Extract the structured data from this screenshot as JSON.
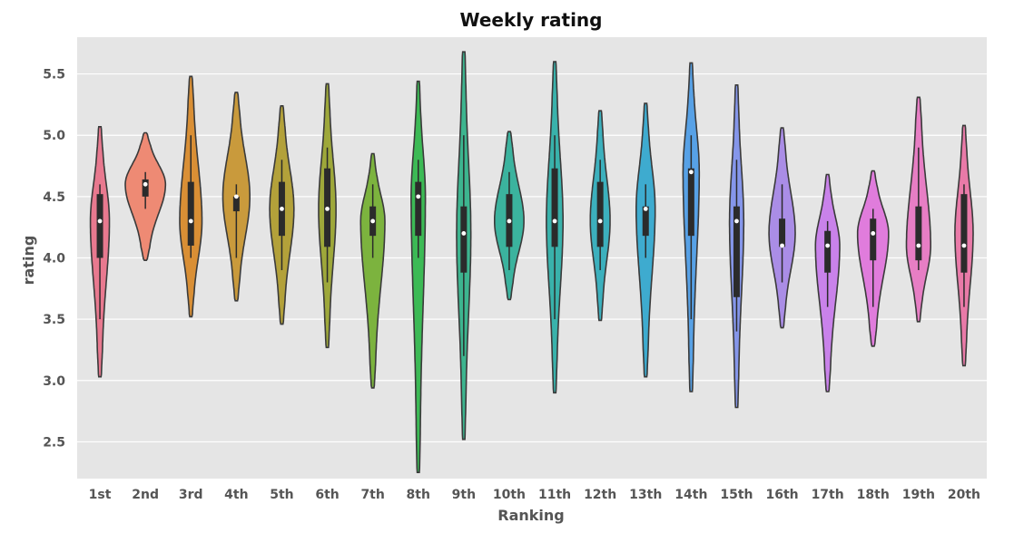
{
  "chart_data": {
    "type": "violin",
    "title": "Weekly rating",
    "xlabel": "Ranking",
    "ylabel": "rating",
    "ylim": [
      2.2,
      5.8
    ],
    "yticks": [
      "2.5",
      "3.0",
      "3.5",
      "4.0",
      "4.5",
      "5.0",
      "5.5"
    ],
    "grid": true,
    "categories": [
      "1st",
      "2nd",
      "3rd",
      "4th",
      "5th",
      "6th",
      "7th",
      "8th",
      "9th",
      "10th",
      "11th",
      "12th",
      "13th",
      "14th",
      "15th",
      "16th",
      "17th",
      "18th",
      "19th",
      "20th"
    ],
    "colors": [
      "#e8798f",
      "#ee8a74",
      "#d98f35",
      "#c99a3c",
      "#b3a13a",
      "#9ea83a",
      "#7cb33e",
      "#3cba55",
      "#3db58f",
      "#3bb39e",
      "#39b2ab",
      "#3cb0bd",
      "#3eabcf",
      "#57a1e6",
      "#8596ea",
      "#aa8de6",
      "#c982ea",
      "#e07cdc",
      "#e77ec4",
      "#e97aa8"
    ],
    "series": [
      {
        "min": 3.03,
        "max": 5.07,
        "q1": 4.0,
        "median": 4.3,
        "q3": 4.52,
        "wlo": 3.5,
        "whi": 4.6,
        "mode": 4.3,
        "maxw": 0.42
      },
      {
        "min": 3.98,
        "max": 5.02,
        "q1": 4.5,
        "median": 4.6,
        "q3": 4.64,
        "wlo": 4.4,
        "whi": 4.7,
        "mode": 4.6,
        "maxw": 0.95
      },
      {
        "min": 3.52,
        "max": 5.48,
        "q1": 4.1,
        "median": 4.3,
        "q3": 4.62,
        "wlo": 4.0,
        "whi": 5.0,
        "mode": 4.3,
        "maxw": 0.5
      },
      {
        "min": 3.65,
        "max": 5.35,
        "q1": 4.38,
        "median": 4.5,
        "q3": 4.5,
        "wlo": 4.0,
        "whi": 4.6,
        "mode": 4.5,
        "maxw": 0.62
      },
      {
        "min": 3.46,
        "max": 5.24,
        "q1": 4.18,
        "median": 4.4,
        "q3": 4.62,
        "wlo": 3.9,
        "whi": 4.8,
        "mode": 4.4,
        "maxw": 0.55
      },
      {
        "min": 3.27,
        "max": 5.42,
        "q1": 4.09,
        "median": 4.4,
        "q3": 4.73,
        "wlo": 3.8,
        "whi": 4.9,
        "mode": 4.4,
        "maxw": 0.38
      },
      {
        "min": 2.94,
        "max": 4.85,
        "q1": 4.18,
        "median": 4.3,
        "q3": 4.42,
        "wlo": 4.0,
        "whi": 4.6,
        "mode": 4.3,
        "maxw": 0.55
      },
      {
        "min": 2.25,
        "max": 5.44,
        "q1": 4.18,
        "median": 4.5,
        "q3": 4.62,
        "wlo": 4.0,
        "whi": 4.8,
        "mode": 4.5,
        "maxw": 0.3
      },
      {
        "min": 2.52,
        "max": 5.68,
        "q1": 3.88,
        "median": 4.2,
        "q3": 4.42,
        "wlo": 3.2,
        "whi": 5.0,
        "mode": 4.2,
        "maxw": 0.3
      },
      {
        "min": 3.66,
        "max": 5.03,
        "q1": 4.09,
        "median": 4.3,
        "q3": 4.52,
        "wlo": 3.9,
        "whi": 4.7,
        "mode": 4.3,
        "maxw": 0.68
      },
      {
        "min": 2.9,
        "max": 5.6,
        "q1": 4.09,
        "median": 4.3,
        "q3": 4.73,
        "wlo": 3.5,
        "whi": 5.0,
        "mode": 4.3,
        "maxw": 0.36
      },
      {
        "min": 3.49,
        "max": 5.2,
        "q1": 4.09,
        "median": 4.3,
        "q3": 4.62,
        "wlo": 3.9,
        "whi": 4.8,
        "mode": 4.3,
        "maxw": 0.44
      },
      {
        "min": 3.03,
        "max": 5.26,
        "q1": 4.18,
        "median": 4.4,
        "q3": 4.42,
        "wlo": 4.0,
        "whi": 4.6,
        "mode": 4.4,
        "maxw": 0.42
      },
      {
        "min": 2.91,
        "max": 5.59,
        "q1": 4.18,
        "median": 4.7,
        "q3": 4.73,
        "wlo": 3.5,
        "whi": 5.0,
        "mode": 4.7,
        "maxw": 0.35
      },
      {
        "min": 2.78,
        "max": 5.41,
        "q1": 3.68,
        "median": 4.3,
        "q3": 4.42,
        "wlo": 3.4,
        "whi": 4.8,
        "mode": 4.3,
        "maxw": 0.3
      },
      {
        "min": 3.43,
        "max": 5.06,
        "q1": 4.09,
        "median": 4.1,
        "q3": 4.32,
        "wlo": 3.8,
        "whi": 4.6,
        "mode": 4.2,
        "maxw": 0.6
      },
      {
        "min": 2.91,
        "max": 4.68,
        "q1": 3.88,
        "median": 4.1,
        "q3": 4.22,
        "wlo": 3.6,
        "whi": 4.3,
        "mode": 4.1,
        "maxw": 0.55
      },
      {
        "min": 3.28,
        "max": 4.71,
        "q1": 3.98,
        "median": 4.2,
        "q3": 4.32,
        "wlo": 3.6,
        "whi": 4.4,
        "mode": 4.2,
        "maxw": 0.72
      },
      {
        "min": 3.48,
        "max": 5.31,
        "q1": 3.98,
        "median": 4.1,
        "q3": 4.42,
        "wlo": 3.9,
        "whi": 4.9,
        "mode": 4.1,
        "maxw": 0.55
      },
      {
        "min": 3.12,
        "max": 5.08,
        "q1": 3.88,
        "median": 4.1,
        "q3": 4.52,
        "wlo": 3.6,
        "whi": 4.6,
        "mode": 4.2,
        "maxw": 0.4
      }
    ]
  }
}
